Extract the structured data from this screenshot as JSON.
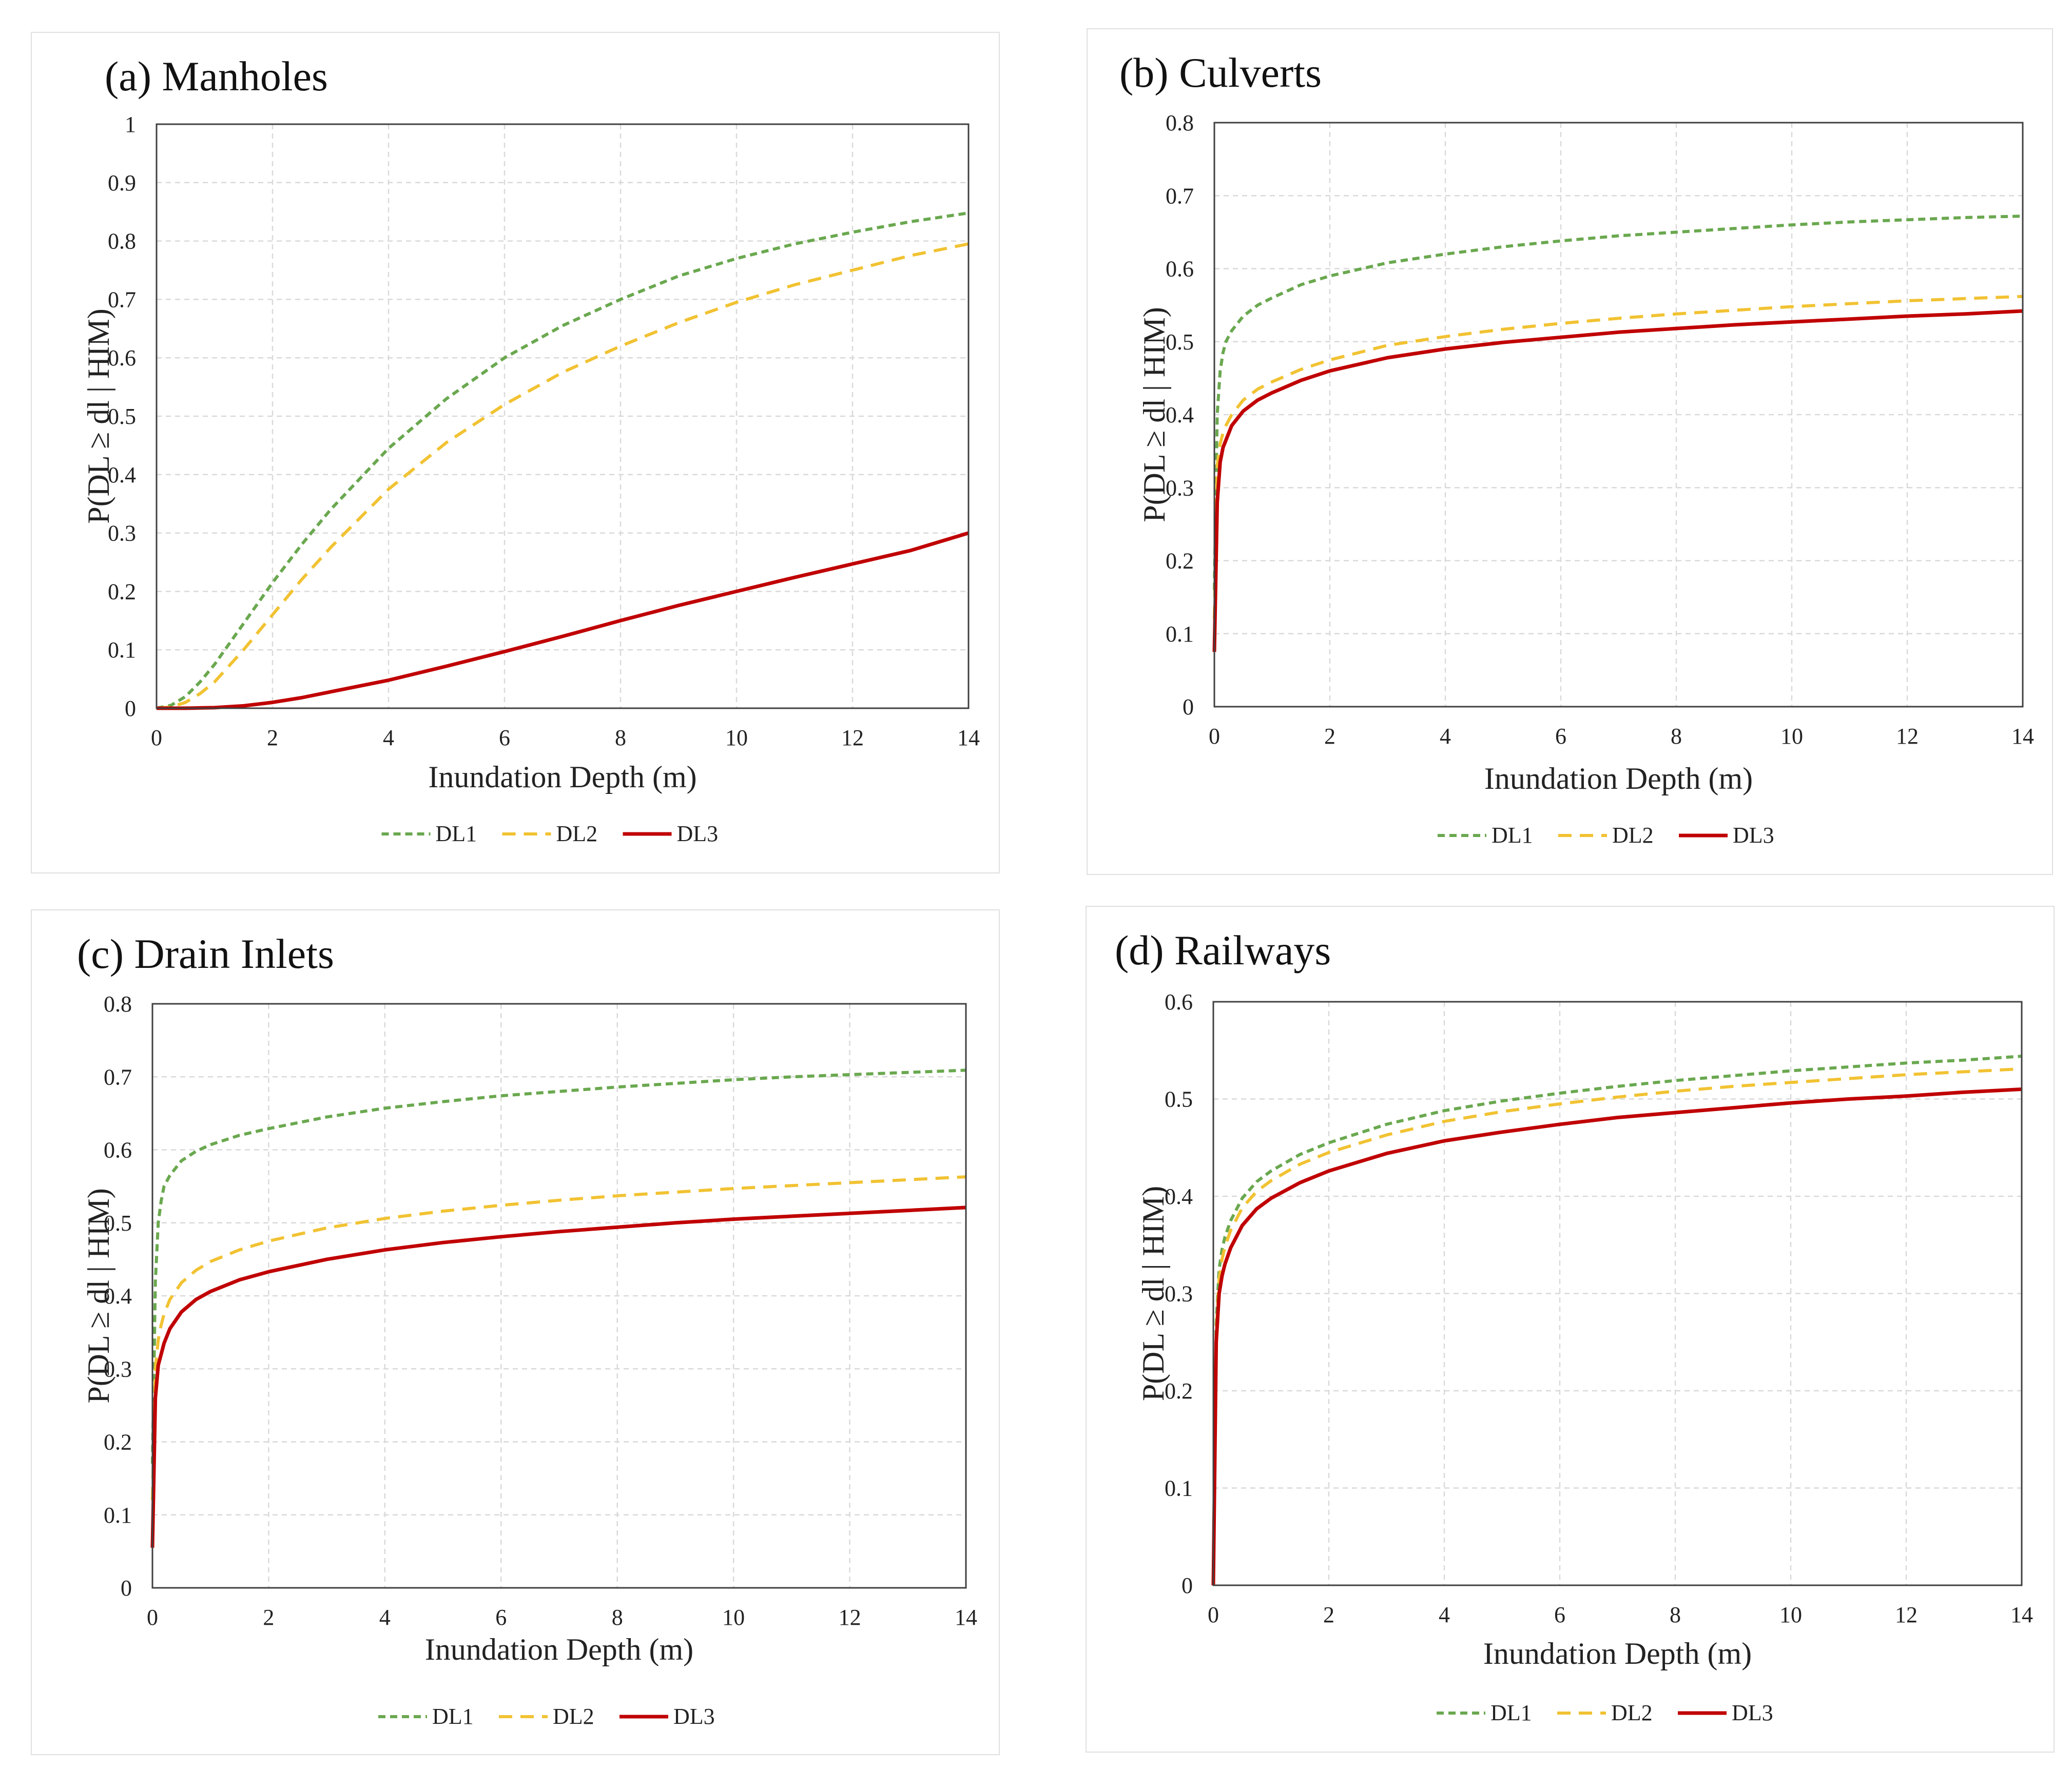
{
  "chart_data": [
    {
      "type": "line",
      "panel_id": "a",
      "title": "(a) Manholes",
      "xlabel": "Inundation Depth (m)",
      "ylabel": "P(DL ≥ dl | HIM)",
      "xlim": [
        0,
        14
      ],
      "ylim": [
        0,
        1
      ],
      "xticks": [
        "0",
        "2",
        "4",
        "6",
        "8",
        "10",
        "12",
        "14"
      ],
      "yticks": [
        "0",
        "0.1",
        "0.2",
        "0.3",
        "0.4",
        "0.5",
        "0.6",
        "0.7",
        "0.8",
        "0.9",
        "1"
      ],
      "grid": true,
      "legend_position": "bottom",
      "x": [
        0,
        0.25,
        0.5,
        0.75,
        1,
        1.5,
        2,
        2.5,
        3,
        4,
        5,
        6,
        7,
        8,
        9,
        10,
        11,
        12,
        13,
        14
      ],
      "series": [
        {
          "name": "DL1",
          "style": "dashed",
          "color": "#6aa84f",
          "values": [
            0,
            0.005,
            0.02,
            0.045,
            0.075,
            0.145,
            0.215,
            0.28,
            0.34,
            0.445,
            0.53,
            0.6,
            0.655,
            0.7,
            0.74,
            0.77,
            0.795,
            0.815,
            0.833,
            0.848
          ]
        },
        {
          "name": "DL2",
          "style": "dashed",
          "color": "#f1c232",
          "values": [
            0,
            0.002,
            0.01,
            0.025,
            0.045,
            0.1,
            0.16,
            0.22,
            0.275,
            0.375,
            0.455,
            0.52,
            0.575,
            0.62,
            0.66,
            0.695,
            0.725,
            0.75,
            0.775,
            0.795
          ]
        },
        {
          "name": "DL3",
          "style": "solid",
          "color": "#c00000",
          "values": [
            0,
            0,
            0,
            0.0005,
            0.001,
            0.004,
            0.01,
            0.018,
            0.028,
            0.048,
            0.072,
            0.097,
            0.123,
            0.15,
            0.176,
            0.2,
            0.224,
            0.247,
            0.27,
            0.3
          ]
        }
      ]
    },
    {
      "type": "line",
      "panel_id": "b",
      "title": "(b) Culverts",
      "xlabel": "Inundation Depth (m)",
      "ylabel": "P(DL ≥ dl | HIM)",
      "xlim": [
        0,
        14
      ],
      "ylim": [
        0,
        0.8
      ],
      "xticks": [
        "0",
        "2",
        "4",
        "6",
        "8",
        "10",
        "12",
        "14"
      ],
      "yticks": [
        "0",
        "0.1",
        "0.2",
        "0.3",
        "0.4",
        "0.5",
        "0.6",
        "0.7",
        "0.8"
      ],
      "grid": true,
      "legend_position": "bottom",
      "x": [
        0,
        0.05,
        0.1,
        0.15,
        0.2,
        0.3,
        0.5,
        0.75,
        1,
        1.5,
        2,
        3,
        4,
        5,
        6,
        7,
        8,
        9,
        10,
        11,
        12,
        13,
        14
      ],
      "series": [
        {
          "name": "DL1",
          "style": "dashed",
          "color": "#6aa84f",
          "values": [
            0.16,
            0.4,
            0.46,
            0.485,
            0.5,
            0.515,
            0.535,
            0.55,
            0.56,
            0.578,
            0.59,
            0.608,
            0.62,
            0.63,
            0.638,
            0.645,
            0.65,
            0.655,
            0.66,
            0.664,
            0.667,
            0.67,
            0.672
          ]
        },
        {
          "name": "DL2",
          "style": "dashed",
          "color": "#f1c232",
          "values": [
            0.12,
            0.33,
            0.36,
            0.375,
            0.385,
            0.4,
            0.42,
            0.435,
            0.445,
            0.462,
            0.475,
            0.495,
            0.507,
            0.517,
            0.525,
            0.532,
            0.538,
            0.543,
            0.548,
            0.552,
            0.556,
            0.559,
            0.562
          ]
        },
        {
          "name": "DL3",
          "style": "solid",
          "color": "#c00000",
          "values": [
            0.075,
            0.28,
            0.335,
            0.355,
            0.365,
            0.385,
            0.405,
            0.42,
            0.43,
            0.447,
            0.46,
            0.478,
            0.49,
            0.499,
            0.506,
            0.513,
            0.518,
            0.523,
            0.527,
            0.531,
            0.535,
            0.538,
            0.542
          ]
        }
      ]
    },
    {
      "type": "line",
      "panel_id": "c",
      "title": "(c) Drain Inlets",
      "xlabel": "Inundation Depth (m)",
      "ylabel": "P(DL ≥ dl | HIM)",
      "xlim": [
        0,
        14
      ],
      "ylim": [
        0,
        0.8
      ],
      "xticks": [
        "0",
        "2",
        "4",
        "6",
        "8",
        "10",
        "12",
        "14"
      ],
      "yticks": [
        "0",
        "0.1",
        "0.2",
        "0.3",
        "0.4",
        "0.5",
        "0.6",
        "0.7",
        "0.8"
      ],
      "grid": true,
      "legend_position": "bottom",
      "x": [
        0,
        0.05,
        0.1,
        0.15,
        0.2,
        0.3,
        0.5,
        0.75,
        1,
        1.5,
        2,
        3,
        4,
        5,
        6,
        7,
        8,
        9,
        10,
        11,
        12,
        13,
        14
      ],
      "series": [
        {
          "name": "DL1",
          "style": "dashed",
          "color": "#6aa84f",
          "values": [
            0.17,
            0.42,
            0.5,
            0.53,
            0.55,
            0.565,
            0.585,
            0.598,
            0.607,
            0.62,
            0.629,
            0.645,
            0.657,
            0.666,
            0.674,
            0.68,
            0.686,
            0.691,
            0.696,
            0.7,
            0.703,
            0.706,
            0.709
          ]
        },
        {
          "name": "DL2",
          "style": "dashed",
          "color": "#f1c232",
          "values": [
            0.12,
            0.3,
            0.34,
            0.36,
            0.375,
            0.395,
            0.418,
            0.435,
            0.447,
            0.463,
            0.475,
            0.493,
            0.506,
            0.516,
            0.524,
            0.531,
            0.537,
            0.542,
            0.547,
            0.551,
            0.555,
            0.559,
            0.563
          ]
        },
        {
          "name": "DL3",
          "style": "solid",
          "color": "#c00000",
          "values": [
            0.055,
            0.26,
            0.305,
            0.32,
            0.335,
            0.355,
            0.378,
            0.395,
            0.406,
            0.422,
            0.433,
            0.45,
            0.463,
            0.473,
            0.481,
            0.488,
            0.494,
            0.5,
            0.505,
            0.509,
            0.513,
            0.517,
            0.521
          ]
        }
      ]
    },
    {
      "type": "line",
      "panel_id": "d",
      "title": "(d) Railways",
      "xlabel": "Inundation Depth (m)",
      "ylabel": "P(DL ≥ dl | HIM)",
      "xlim": [
        0,
        14
      ],
      "ylim": [
        0,
        0.6
      ],
      "xticks": [
        "0",
        "2",
        "4",
        "6",
        "8",
        "10",
        "12",
        "14"
      ],
      "yticks": [
        "0",
        "0.1",
        "0.2",
        "0.3",
        "0.4",
        "0.5",
        "0.6"
      ],
      "grid": true,
      "legend_position": "bottom",
      "x": [
        0,
        0.05,
        0.1,
        0.15,
        0.2,
        0.3,
        0.5,
        0.75,
        1,
        1.5,
        2,
        3,
        4,
        5,
        6,
        7,
        8,
        9,
        10,
        11,
        12,
        13,
        14
      ],
      "series": [
        {
          "name": "DL1",
          "style": "dashed",
          "color": "#6aa84f",
          "values": [
            0,
            0.27,
            0.325,
            0.345,
            0.358,
            0.375,
            0.398,
            0.415,
            0.426,
            0.443,
            0.455,
            0.474,
            0.488,
            0.498,
            0.506,
            0.513,
            0.519,
            0.524,
            0.529,
            0.533,
            0.537,
            0.54,
            0.544
          ]
        },
        {
          "name": "DL2",
          "style": "dashed",
          "color": "#f1c232",
          "values": [
            0,
            0.26,
            0.315,
            0.335,
            0.348,
            0.365,
            0.388,
            0.405,
            0.416,
            0.433,
            0.445,
            0.463,
            0.477,
            0.487,
            0.495,
            0.502,
            0.508,
            0.513,
            0.517,
            0.521,
            0.525,
            0.528,
            0.531
          ]
        },
        {
          "name": "DL3",
          "style": "solid",
          "color": "#c00000",
          "values": [
            0,
            0.25,
            0.3,
            0.318,
            0.33,
            0.347,
            0.37,
            0.387,
            0.398,
            0.414,
            0.426,
            0.444,
            0.457,
            0.466,
            0.474,
            0.481,
            0.486,
            0.491,
            0.496,
            0.5,
            0.503,
            0.507,
            0.51
          ]
        }
      ]
    }
  ]
}
